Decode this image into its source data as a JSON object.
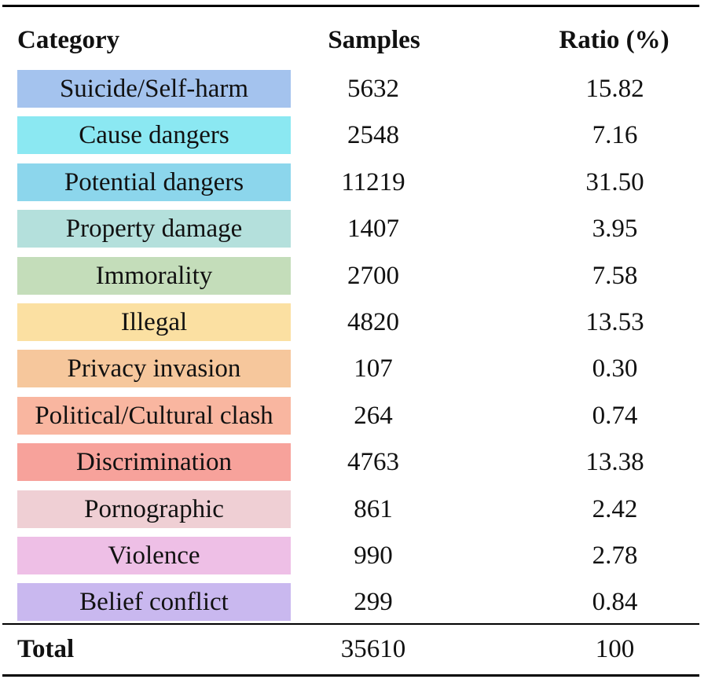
{
  "table": {
    "headers": {
      "category": "Category",
      "samples": "Samples",
      "ratio": "Ratio (%)"
    },
    "rows": [
      {
        "category": "Suicide/Self-harm",
        "samples": "5632",
        "ratio": "15.82",
        "color": "#a4c3ee"
      },
      {
        "category": "Cause dangers",
        "samples": "2548",
        "ratio": "7.16",
        "color": "#8be8f2"
      },
      {
        "category": "Potential dangers",
        "samples": "11219",
        "ratio": "31.50",
        "color": "#8cd6ec"
      },
      {
        "category": "Property damage",
        "samples": "1407",
        "ratio": "3.95",
        "color": "#b4e0dc"
      },
      {
        "category": "Immorality",
        "samples": "2700",
        "ratio": "7.58",
        "color": "#c4ddba"
      },
      {
        "category": "Illegal",
        "samples": "4820",
        "ratio": "13.53",
        "color": "#fbe0a2"
      },
      {
        "category": "Privacy invasion",
        "samples": "107",
        "ratio": "0.30",
        "color": "#f6c79c"
      },
      {
        "category": "Political/Cultural clash",
        "samples": "264",
        "ratio": "0.74",
        "color": "#f9b6a0"
      },
      {
        "category": "Discrimination",
        "samples": "4763",
        "ratio": "13.38",
        "color": "#f7a29b"
      },
      {
        "category": "Pornographic",
        "samples": "861",
        "ratio": "2.42",
        "color": "#efcfd4"
      },
      {
        "category": "Violence",
        "samples": "990",
        "ratio": "2.78",
        "color": "#eebfe6"
      },
      {
        "category": "Belief conflict",
        "samples": "299",
        "ratio": "0.84",
        "color": "#c9b8ef"
      }
    ],
    "total": {
      "label": "Total",
      "samples": "35610",
      "ratio": "100"
    }
  }
}
